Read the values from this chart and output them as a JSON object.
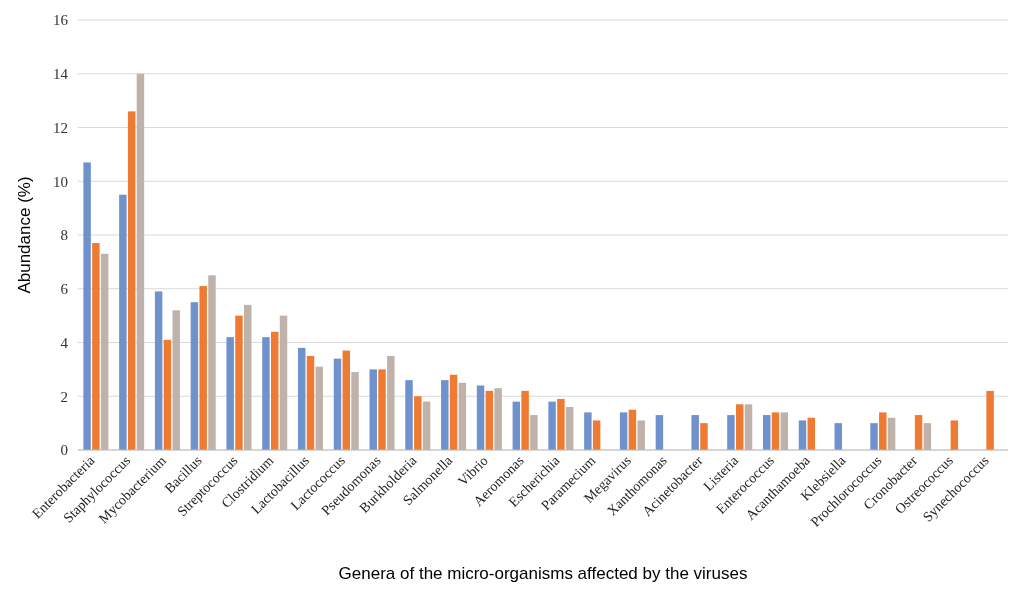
{
  "chart_data": {
    "type": "bar",
    "xlabel": "Genera of the micro-organisms affected by the viruses",
    "ylabel": "Abundance (%)",
    "categories": [
      "Enterobacteria",
      "Staphylococcus",
      "Mycobacterium",
      "Bacillus",
      "Streptococcus",
      "Clostridium",
      "Lactobacillus",
      "Lactococcus",
      "Pseudomonas",
      "Burkholderia",
      "Salmonella",
      "Vibrio",
      "Aeromonas",
      "Escherichia",
      "Paramecium",
      "Megavirus",
      "Xanthomonas",
      "Acinetobacter",
      "Listeria",
      "Enterococcus",
      "Acanthamoeba",
      "Klebsiella",
      "Prochlorococcus",
      "Cronobacter",
      "Ostreococcus",
      "Synechococcus"
    ],
    "series": [
      {
        "color": "#7092cc",
        "values": [
          10.7,
          9.5,
          5.9,
          5.5,
          4.2,
          4.2,
          3.8,
          3.4,
          3.0,
          2.6,
          2.6,
          2.4,
          1.8,
          1.8,
          1.4,
          1.4,
          1.3,
          1.3,
          1.3,
          1.3,
          1.1,
          1.0,
          1.0,
          null,
          null,
          null
        ]
      },
      {
        "color": "#ef7b33",
        "values": [
          7.7,
          12.6,
          4.1,
          6.1,
          5.0,
          4.4,
          3.5,
          3.7,
          3.0,
          2.0,
          2.8,
          2.2,
          2.2,
          1.9,
          1.1,
          1.5,
          null,
          1.0,
          1.7,
          1.4,
          1.2,
          null,
          1.4,
          1.3,
          1.1,
          2.2
        ]
      },
      {
        "color": "#bfb2aa",
        "values": [
          7.3,
          14.0,
          5.2,
          6.5,
          5.4,
          5.0,
          3.1,
          2.9,
          3.5,
          1.8,
          2.5,
          2.3,
          1.3,
          1.6,
          null,
          1.1,
          null,
          null,
          1.7,
          1.4,
          null,
          null,
          1.2,
          1.0,
          null,
          null
        ]
      }
    ],
    "ylim": [
      0,
      16
    ],
    "yticks": [
      0,
      2,
      4,
      6,
      8,
      10,
      12,
      14,
      16
    ],
    "grid": "y"
  }
}
